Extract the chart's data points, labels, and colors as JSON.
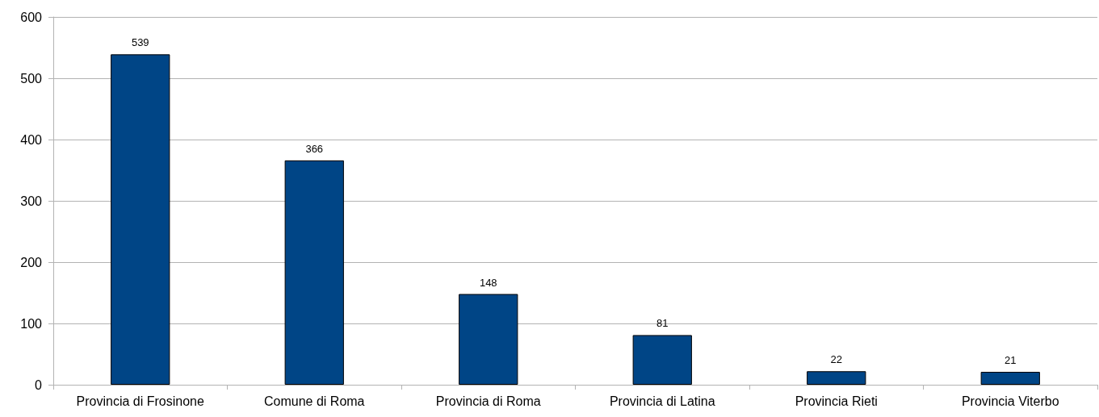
{
  "chart_data": {
    "type": "bar",
    "categories": [
      "Provincia di Frosinone",
      "Comune di Roma",
      "Provincia di Roma",
      "Provincia di Latina",
      "Provincia Rieti",
      "Provincia Viterbo"
    ],
    "values": [
      539,
      366,
      148,
      81,
      22,
      21
    ],
    "color": "#004586",
    "ylim": [
      0,
      600
    ],
    "yticks": [
      0,
      100,
      200,
      300,
      400,
      500,
      600
    ],
    "grid": "y",
    "data_labels": true
  }
}
